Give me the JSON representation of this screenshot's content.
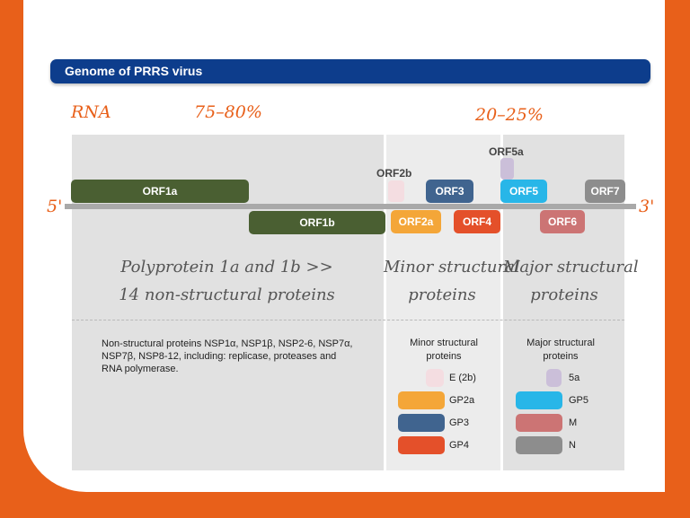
{
  "header": {
    "title": "Genome of PRRS virus"
  },
  "annotations": {
    "rna": "RNA",
    "pct_left": "75–80%",
    "pct_right": "20–25%",
    "five_prime": "5'",
    "three_prime": "3'"
  },
  "orfs": {
    "orf1a": "ORF1a",
    "orf1b": "ORF1b",
    "orf2b": "ORF2b",
    "orf2a": "ORF2a",
    "orf3": "ORF3",
    "orf4": "ORF4",
    "orf5a": "ORF5a",
    "orf5": "ORF5",
    "orf6": "ORF6",
    "orf7": "ORF7"
  },
  "handwritten": {
    "nonstructural_line1": "Polyprotein 1a and 1b >>",
    "nonstructural_line2": "14 non-structural proteins",
    "minor_line1": "Minor structural",
    "minor_line2": "proteins",
    "major_line1": "Major structural",
    "major_line2": "proteins"
  },
  "description": {
    "nonstructural": "Non-structural proteins NSP1α, NSP1β, NSP2-6, NSP7α, NSP7β, NSP8-12, including: replicase, proteases and RNA polymerase."
  },
  "legend": {
    "minor_title": "Minor structural proteins",
    "major_title": "Major structural proteins",
    "minor_items": [
      "E (2b)",
      "GP2a",
      "GP3",
      "GP4"
    ],
    "major_items": [
      "5a",
      "GP5",
      "M",
      "N"
    ]
  },
  "colors": {
    "orange": "#e8601a",
    "navy": "#0d3d8c",
    "olive": "#4a5f32",
    "pale_pink": "#f4dde1",
    "amber": "#f4a638",
    "steel_blue": "#40648f",
    "red_orange": "#e4502a",
    "lavender": "#cbbfd9",
    "cyan": "#28b6e8",
    "dusty_rose": "#cc7474",
    "gray": "#8d8d8d"
  }
}
